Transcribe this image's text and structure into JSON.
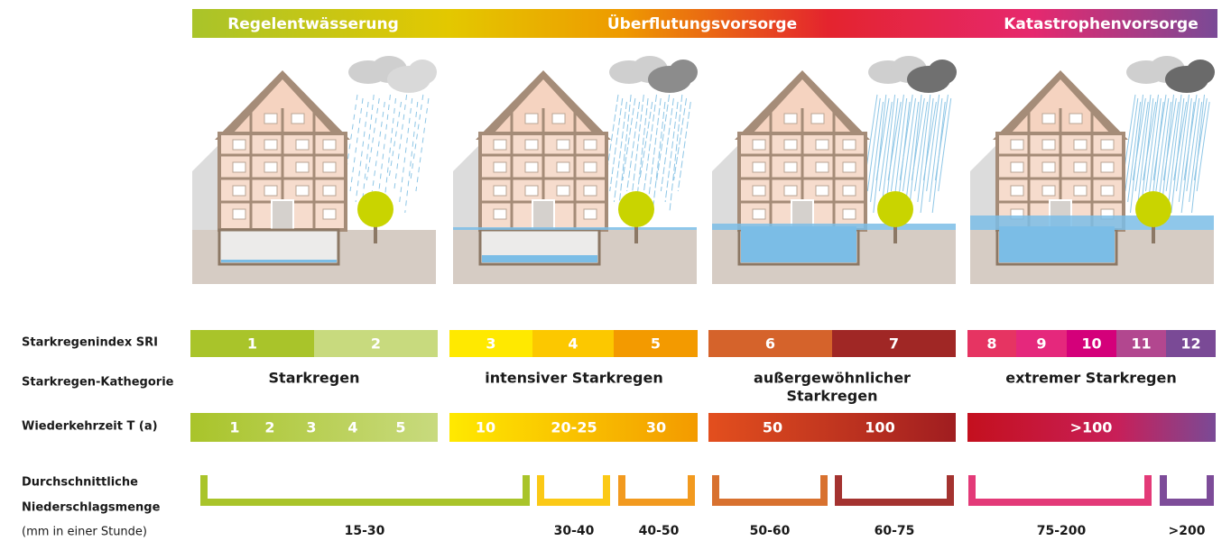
{
  "banner": [
    "Regelentwässerung",
    "Überflutungsvorsorge",
    "Katastrophenvorsorge"
  ],
  "row_labels": {
    "sri": "Starkregenindex SRI",
    "category": "Starkregen-Kathegorie",
    "return_period": "Wiederkehrzeit T (a)",
    "amount": [
      "Durchschnittliche",
      "Niederschlagsmenge",
      "(mm in einer Stunde)"
    ]
  },
  "sri": [
    {
      "label": "1",
      "color": "#a9c42a"
    },
    {
      "label": "2",
      "color": "#c8da7e"
    },
    {
      "label": "3",
      "color": "#ffe900"
    },
    {
      "label": "4",
      "color": "#fcc800"
    },
    {
      "label": "5",
      "color": "#f39a00"
    },
    {
      "label": "6",
      "color": "#d5632b"
    },
    {
      "label": "7",
      "color": "#a02725"
    },
    {
      "label": "8",
      "color": "#e63462"
    },
    {
      "label": "9",
      "color": "#e5287c"
    },
    {
      "label": "10",
      "color": "#d4007a"
    },
    {
      "label": "11",
      "color": "#b2478f"
    },
    {
      "label": "12",
      "color": "#7a4a96"
    }
  ],
  "categories": [
    [
      "Starkregen"
    ],
    [
      "intensiver Starkregen"
    ],
    [
      "außergewöhnlicher",
      "Starkregen"
    ],
    [
      "extremer Starkregen"
    ]
  ],
  "return_periods": [
    "1",
    "2",
    "3",
    "4",
    "5",
    "10",
    "20-25",
    "30",
    "50",
    "100",
    ">100"
  ],
  "amounts": [
    {
      "label": "15-30",
      "color": "#a9c42a"
    },
    {
      "label": "30-40",
      "color": "#fbc916"
    },
    {
      "label": "40-50",
      "color": "#f29a1f"
    },
    {
      "label": "50-60",
      "color": "#d8712f"
    },
    {
      "label": "60-75",
      "color": "#a43330"
    },
    {
      "label": "75-200",
      "color": "#e33a78"
    },
    {
      "label": ">200",
      "color": "#7d4c99"
    }
  ]
}
